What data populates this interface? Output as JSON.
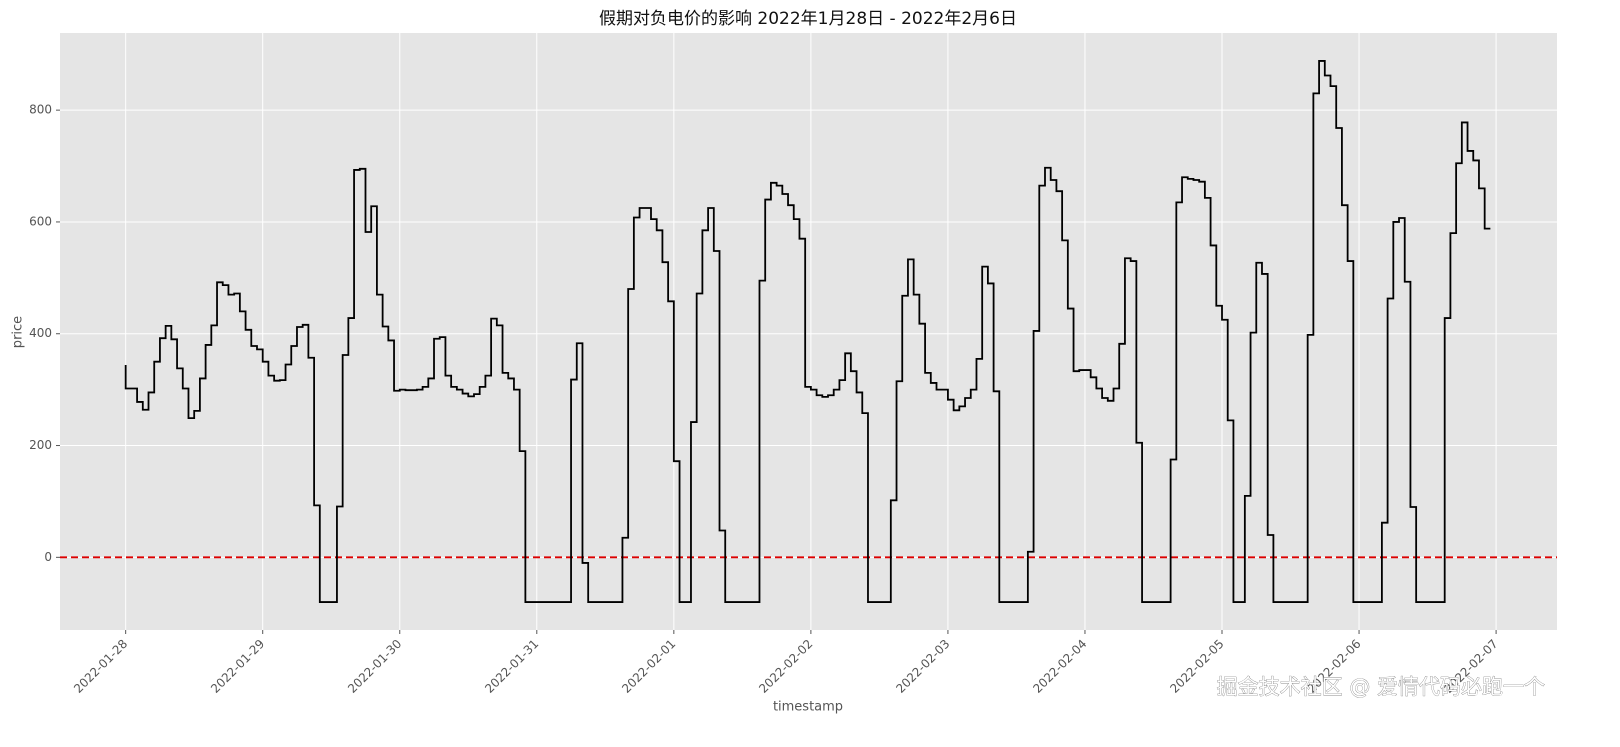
{
  "chart_data": {
    "type": "line",
    "drawstyle": "steps-pre",
    "title": "假期对负电价的影响 2022年1月28日 - 2022年2月6日",
    "x_label": "timestamp",
    "y_label": "price",
    "watermark": "掘金技术社区 @ 爱情代码必跑一个",
    "background": "#e5e5e5",
    "grid": true,
    "xlim": [
      "2022-01-27 12:30",
      "2022-02-07 10:40"
    ],
    "xticks": [
      "2022-01-28",
      "2022-01-29",
      "2022-01-30",
      "2022-01-31",
      "2022-02-01",
      "2022-02-02",
      "2022-02-03",
      "2022-02-04",
      "2022-02-05",
      "2022-02-06",
      "2022-02-07"
    ],
    "ylim": [
      -130,
      938
    ],
    "yticks": [
      0,
      200,
      400,
      600,
      800
    ],
    "hline": {
      "value": 0,
      "color": "#dd0000"
    },
    "x": [
      "2022-01-28 00:00",
      "2022-01-28 01:00",
      "2022-01-28 02:00",
      "2022-01-28 03:00",
      "2022-01-28 04:00",
      "2022-01-28 05:00",
      "2022-01-28 06:00",
      "2022-01-28 07:00",
      "2022-01-28 08:00",
      "2022-01-28 09:00",
      "2022-01-28 10:00",
      "2022-01-28 11:00",
      "2022-01-28 12:00",
      "2022-01-28 13:00",
      "2022-01-28 14:00",
      "2022-01-28 15:00",
      "2022-01-28 16:00",
      "2022-01-28 17:00",
      "2022-01-28 18:00",
      "2022-01-28 19:00",
      "2022-01-28 20:00",
      "2022-01-28 21:00",
      "2022-01-28 22:00",
      "2022-01-28 23:00",
      "2022-01-29 00:00",
      "2022-01-29 01:00",
      "2022-01-29 02:00",
      "2022-01-29 03:00",
      "2022-01-29 04:00",
      "2022-01-29 05:00",
      "2022-01-29 06:00",
      "2022-01-29 07:00",
      "2022-01-29 08:00",
      "2022-01-29 09:00",
      "2022-01-29 10:00",
      "2022-01-29 11:00",
      "2022-01-29 12:00",
      "2022-01-29 13:00",
      "2022-01-29 14:00",
      "2022-01-29 15:00",
      "2022-01-29 16:00",
      "2022-01-29 17:00",
      "2022-01-29 18:00",
      "2022-01-29 19:00",
      "2022-01-29 20:00",
      "2022-01-29 21:00",
      "2022-01-29 22:00",
      "2022-01-29 23:00",
      "2022-01-30 00:00",
      "2022-01-30 01:00",
      "2022-01-30 02:00",
      "2022-01-30 03:00",
      "2022-01-30 04:00",
      "2022-01-30 05:00",
      "2022-01-30 06:00",
      "2022-01-30 07:00",
      "2022-01-30 08:00",
      "2022-01-30 09:00",
      "2022-01-30 10:00",
      "2022-01-30 11:00",
      "2022-01-30 12:00",
      "2022-01-30 13:00",
      "2022-01-30 14:00",
      "2022-01-30 15:00",
      "2022-01-30 16:00",
      "2022-01-30 17:00",
      "2022-01-30 18:00",
      "2022-01-30 19:00",
      "2022-01-30 20:00",
      "2022-01-30 21:00",
      "2022-01-30 22:00",
      "2022-01-30 23:00",
      "2022-01-31 00:00",
      "2022-01-31 01:00",
      "2022-01-31 02:00",
      "2022-01-31 03:00",
      "2022-01-31 04:00",
      "2022-01-31 05:00",
      "2022-01-31 06:00",
      "2022-01-31 07:00",
      "2022-01-31 08:00",
      "2022-01-31 09:00",
      "2022-01-31 10:00",
      "2022-01-31 11:00",
      "2022-01-31 12:00",
      "2022-01-31 13:00",
      "2022-01-31 14:00",
      "2022-01-31 15:00",
      "2022-01-31 16:00",
      "2022-01-31 17:00",
      "2022-01-31 18:00",
      "2022-01-31 19:00",
      "2022-01-31 20:00",
      "2022-01-31 21:00",
      "2022-01-31 22:00",
      "2022-01-31 23:00",
      "2022-02-01 00:00",
      "2022-02-01 01:00",
      "2022-02-01 02:00",
      "2022-02-01 03:00",
      "2022-02-01 04:00",
      "2022-02-01 05:00",
      "2022-02-01 06:00",
      "2022-02-01 07:00",
      "2022-02-01 08:00",
      "2022-02-01 09:00",
      "2022-02-01 10:00",
      "2022-02-01 11:00",
      "2022-02-01 12:00",
      "2022-02-01 13:00",
      "2022-02-01 14:00",
      "2022-02-01 15:00",
      "2022-02-01 16:00",
      "2022-02-01 17:00",
      "2022-02-01 18:00",
      "2022-02-01 19:00",
      "2022-02-01 20:00",
      "2022-02-01 21:00",
      "2022-02-01 22:00",
      "2022-02-01 23:00",
      "2022-02-02 00:00",
      "2022-02-02 01:00",
      "2022-02-02 02:00",
      "2022-02-02 03:00",
      "2022-02-02 04:00",
      "2022-02-02 05:00",
      "2022-02-02 06:00",
      "2022-02-02 07:00",
      "2022-02-02 08:00",
      "2022-02-02 09:00",
      "2022-02-02 10:00",
      "2022-02-02 11:00",
      "2022-02-02 12:00",
      "2022-02-02 13:00",
      "2022-02-02 14:00",
      "2022-02-02 15:00",
      "2022-02-02 16:00",
      "2022-02-02 17:00",
      "2022-02-02 18:00",
      "2022-02-02 19:00",
      "2022-02-02 20:00",
      "2022-02-02 21:00",
      "2022-02-02 22:00",
      "2022-02-02 23:00",
      "2022-02-03 00:00",
      "2022-02-03 01:00",
      "2022-02-03 02:00",
      "2022-02-03 03:00",
      "2022-02-03 04:00",
      "2022-02-03 05:00",
      "2022-02-03 06:00",
      "2022-02-03 07:00",
      "2022-02-03 08:00",
      "2022-02-03 09:00",
      "2022-02-03 10:00",
      "2022-02-03 11:00",
      "2022-02-03 12:00",
      "2022-02-03 13:00",
      "2022-02-03 14:00",
      "2022-02-03 15:00",
      "2022-02-03 16:00",
      "2022-02-03 17:00",
      "2022-02-03 18:00",
      "2022-02-03 19:00",
      "2022-02-03 20:00",
      "2022-02-03 21:00",
      "2022-02-03 22:00",
      "2022-02-03 23:00",
      "2022-02-04 00:00",
      "2022-02-04 01:00",
      "2022-02-04 02:00",
      "2022-02-04 03:00",
      "2022-02-04 04:00",
      "2022-02-04 05:00",
      "2022-02-04 06:00",
      "2022-02-04 07:00",
      "2022-02-04 08:00",
      "2022-02-04 09:00",
      "2022-02-04 10:00",
      "2022-02-04 11:00",
      "2022-02-04 12:00",
      "2022-02-04 13:00",
      "2022-02-04 14:00",
      "2022-02-04 15:00",
      "2022-02-04 16:00",
      "2022-02-04 17:00",
      "2022-02-04 18:00",
      "2022-02-04 19:00",
      "2022-02-04 20:00",
      "2022-02-04 21:00",
      "2022-02-04 22:00",
      "2022-02-04 23:00",
      "2022-02-05 00:00",
      "2022-02-05 01:00",
      "2022-02-05 02:00",
      "2022-02-05 03:00",
      "2022-02-05 04:00",
      "2022-02-05 05:00",
      "2022-02-05 06:00",
      "2022-02-05 07:00",
      "2022-02-05 08:00",
      "2022-02-05 09:00",
      "2022-02-05 10:00",
      "2022-02-05 11:00",
      "2022-02-05 12:00",
      "2022-02-05 13:00",
      "2022-02-05 14:00",
      "2022-02-05 15:00",
      "2022-02-05 16:00",
      "2022-02-05 17:00",
      "2022-02-05 18:00",
      "2022-02-05 19:00",
      "2022-02-05 20:00",
      "2022-02-05 21:00",
      "2022-02-05 22:00",
      "2022-02-05 23:00",
      "2022-02-06 00:00",
      "2022-02-06 01:00",
      "2022-02-06 02:00",
      "2022-02-06 03:00",
      "2022-02-06 04:00",
      "2022-02-06 05:00",
      "2022-02-06 06:00",
      "2022-02-06 07:00",
      "2022-02-06 08:00",
      "2022-02-06 09:00",
      "2022-02-06 10:00",
      "2022-02-06 11:00",
      "2022-02-06 12:00",
      "2022-02-06 13:00",
      "2022-02-06 14:00",
      "2022-02-06 15:00",
      "2022-02-06 16:00",
      "2022-02-06 17:00",
      "2022-02-06 18:00",
      "2022-02-06 19:00",
      "2022-02-06 20:00",
      "2022-02-06 21:00",
      "2022-02-06 22:00",
      "2022-02-06 23:00"
    ],
    "series": [
      {
        "name": "price",
        "color": "#000000",
        "values": [
          344,
          302,
          302,
          278,
          264,
          295,
          350,
          392,
          414,
          390,
          338,
          302,
          249,
          262,
          320,
          380,
          415,
          492,
          487,
          470,
          472,
          440,
          407,
          378,
          372,
          350,
          325,
          316,
          317,
          345,
          378,
          412,
          416,
          357,
          93,
          -80,
          -80,
          -80,
          91,
          362,
          428,
          693,
          695,
          582,
          628,
          470,
          413,
          388,
          298,
          300,
          299,
          299,
          300,
          305,
          320,
          391,
          394,
          325,
          305,
          300,
          293,
          288,
          292,
          305,
          325,
          427,
          415,
          330,
          320,
          300,
          190,
          -80,
          -80,
          -80,
          -80,
          -80,
          -80,
          -80,
          -80,
          318,
          383,
          -10,
          -80,
          -80,
          -80,
          -80,
          -80,
          -80,
          35,
          480,
          608,
          625,
          625,
          605,
          585,
          528,
          458,
          172,
          -80,
          -80,
          242,
          472,
          585,
          625,
          548,
          48,
          -80,
          -80,
          -80,
          -80,
          -80,
          -80,
          495,
          640,
          670,
          665,
          650,
          630,
          605,
          570,
          305,
          300,
          290,
          287,
          290,
          300,
          317,
          365,
          333,
          295,
          258,
          -80,
          -80,
          -80,
          -80,
          102,
          315,
          468,
          533,
          470,
          418,
          330,
          312,
          300,
          300,
          282,
          263,
          270,
          285,
          300,
          355,
          520,
          490,
          297,
          -80,
          -80,
          -80,
          -80,
          -80,
          10,
          405,
          665,
          697,
          675,
          655,
          567,
          445,
          333,
          335,
          335,
          322,
          302,
          285,
          280,
          302,
          382,
          535,
          530,
          205,
          -80,
          -80,
          -80,
          -80,
          -80,
          175,
          635,
          680,
          677,
          675,
          672,
          643,
          558,
          450,
          425,
          245,
          -80,
          -80,
          110,
          402,
          527,
          507,
          40,
          -80,
          -80,
          -80,
          -80,
          -80,
          -80,
          398,
          830,
          888,
          862,
          843,
          768,
          630,
          530,
          -80,
          -80,
          -80,
          -80,
          -80,
          62,
          463,
          600,
          607,
          493,
          90,
          -80,
          -80,
          -80,
          -80,
          -80,
          428,
          580,
          705,
          778,
          727,
          710,
          660,
          588
        ]
      }
    ]
  }
}
